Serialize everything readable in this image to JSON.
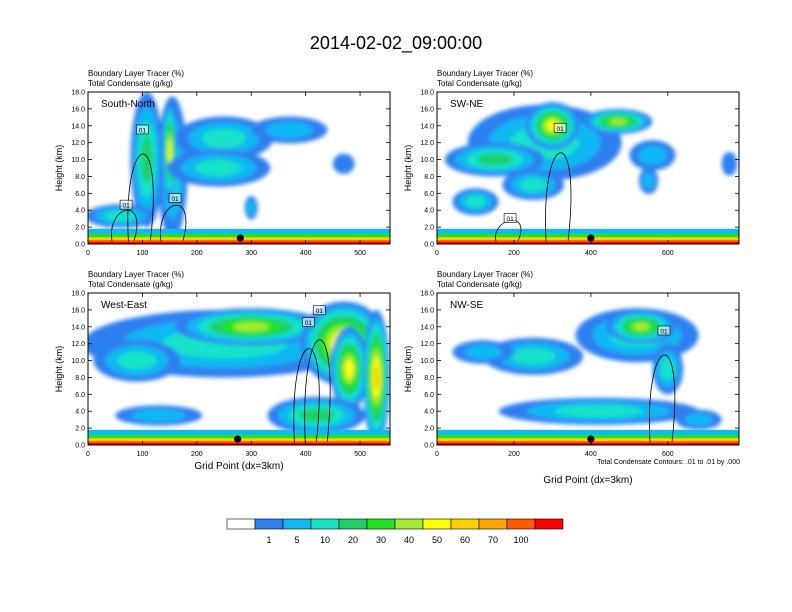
{
  "figure_title": "2014-02-02_09:00:00",
  "chart_data": [
    {
      "type": "heatmap",
      "panel": "top-left",
      "label": "South-North",
      "title_line1": "Boundary Layer Tracer    (%)",
      "title_line2": "Total Condensate    (g/kg)",
      "ylabel": "Height (km)",
      "xlabel": "",
      "xlim": [
        0,
        555
      ],
      "ylim": [
        0,
        18
      ],
      "xticks": [
        0,
        100,
        200,
        300,
        400,
        500
      ],
      "yticks": [
        "0.0",
        "2.0",
        "4.0",
        "6.0",
        "8.0",
        "10.0",
        "12.0",
        "14.0",
        "16.0",
        "18.0"
      ],
      "marker_x": 280,
      "contour_labels": [
        {
          "text": "01",
          "x": 160,
          "y": 5.4
        },
        {
          "text": "01",
          "x": 70,
          "y": 4.6
        },
        {
          "text": "01",
          "x": 100,
          "y": 13.5
        }
      ],
      "plumes": [
        {
          "x": 155,
          "y": 9.0,
          "rx": 28,
          "ry": 8.5,
          "level": 3
        },
        {
          "x": 150,
          "y": 11.0,
          "rx": 14,
          "ry": 6,
          "level": 7
        },
        {
          "x": 108,
          "y": 10.0,
          "rx": 30,
          "ry": 8,
          "level": 4
        },
        {
          "x": 60,
          "y": 3.3,
          "rx": 65,
          "ry": 1.4,
          "level": 3
        },
        {
          "x": 250,
          "y": 12.5,
          "rx": 90,
          "ry": 2.6,
          "level": 3
        },
        {
          "x": 240,
          "y": 9.0,
          "rx": 95,
          "ry": 2.2,
          "level": 3
        },
        {
          "x": 370,
          "y": 13.5,
          "rx": 70,
          "ry": 1.6,
          "level": 2
        },
        {
          "x": 300,
          "y": 4.3,
          "rx": 12,
          "ry": 1.4,
          "level": 2
        },
        {
          "x": 470,
          "y": 9.5,
          "rx": 20,
          "ry": 1.2,
          "level": 1
        }
      ]
    },
    {
      "type": "heatmap",
      "panel": "top-right",
      "label": "SW-NE",
      "title_line1": "Boundary Layer Tracer    (%)",
      "title_line2": "Total Condensate    (g/kg)",
      "ylabel": "Height (km)",
      "xlabel": "",
      "xlim": [
        0,
        785
      ],
      "ylim": [
        0,
        18
      ],
      "xticks": [
        0,
        200,
        400,
        600
      ],
      "yticks": [
        "0.0",
        "2.0",
        "4.0",
        "6.0",
        "8.0",
        "10.0",
        "12.0",
        "14.0",
        "16.0",
        "18.0"
      ],
      "marker_x": 400,
      "contour_labels": [
        {
          "text": "01",
          "x": 190,
          "y": 3.0
        },
        {
          "text": "01",
          "x": 320,
          "y": 13.7
        }
      ],
      "plumes": [
        {
          "x": 280,
          "y": 12.0,
          "rx": 200,
          "ry": 4.5,
          "level": 3
        },
        {
          "x": 300,
          "y": 14.0,
          "rx": 70,
          "ry": 2.8,
          "level": 7
        },
        {
          "x": 470,
          "y": 14.5,
          "rx": 90,
          "ry": 1.5,
          "level": 6
        },
        {
          "x": 150,
          "y": 10.0,
          "rx": 130,
          "ry": 2.0,
          "level": 4
        },
        {
          "x": 100,
          "y": 5.0,
          "rx": 60,
          "ry": 1.6,
          "level": 3
        },
        {
          "x": 250,
          "y": 7.0,
          "rx": 80,
          "ry": 1.8,
          "level": 3
        },
        {
          "x": 560,
          "y": 10.5,
          "rx": 60,
          "ry": 1.8,
          "level": 2
        },
        {
          "x": 550,
          "y": 7.5,
          "rx": 25,
          "ry": 1.6,
          "level": 2
        },
        {
          "x": 760,
          "y": 9.5,
          "rx": 20,
          "ry": 1.4,
          "level": 1
        }
      ]
    },
    {
      "type": "heatmap",
      "panel": "bottom-left",
      "label": "West-East",
      "title_line1": "Boundary Layer Tracer    (%)",
      "title_line2": "Total Condensate    (g/kg)",
      "ylabel": "Height (km)",
      "xlabel": "Grid Point (dx=3km)",
      "xlim": [
        0,
        555
      ],
      "ylim": [
        0,
        18
      ],
      "xticks": [
        0,
        100,
        200,
        300,
        400,
        500
      ],
      "yticks": [
        "0.0",
        "2.0",
        "4.0",
        "6.0",
        "8.0",
        "10.0",
        "12.0",
        "14.0",
        "16.0",
        "18.0"
      ],
      "marker_x": 275,
      "contour_labels": [
        {
          "text": "01",
          "x": 425,
          "y": 15.9
        },
        {
          "text": "01",
          "x": 405,
          "y": 14.5
        }
      ],
      "plumes": [
        {
          "x": 250,
          "y": 12.0,
          "rx": 260,
          "ry": 4.0,
          "level": 3
        },
        {
          "x": 300,
          "y": 14.0,
          "rx": 140,
          "ry": 2.2,
          "level": 6
        },
        {
          "x": 470,
          "y": 12.0,
          "rx": 80,
          "ry": 5.0,
          "level": 8
        },
        {
          "x": 480,
          "y": 9.0,
          "rx": 35,
          "ry": 5.0,
          "level": 7
        },
        {
          "x": 530,
          "y": 8.0,
          "rx": 25,
          "ry": 8.0,
          "level": 8
        },
        {
          "x": 420,
          "y": 3.5,
          "rx": 90,
          "ry": 2.2,
          "level": 4
        },
        {
          "x": 90,
          "y": 10.0,
          "rx": 80,
          "ry": 2.5,
          "level": 3
        },
        {
          "x": 130,
          "y": 3.5,
          "rx": 80,
          "ry": 1.2,
          "level": 2
        }
      ]
    },
    {
      "type": "heatmap",
      "panel": "bottom-right",
      "label": "NW-SE",
      "title_line1": "Boundary Layer Tracer    (%)",
      "title_line2": "Total Condensate    (g/kg)",
      "ylabel": "Height (km)",
      "xlabel": "Grid Point (dx=3km)",
      "xlim": [
        0,
        785
      ],
      "ylim": [
        0,
        18
      ],
      "xticks": [
        0,
        200,
        400,
        600
      ],
      "yticks": [
        "0.0",
        "2.0",
        "4.0",
        "6.0",
        "8.0",
        "10.0",
        "12.0",
        "14.0",
        "16.0",
        "18.0"
      ],
      "marker_x": 400,
      "contour_labels": [
        {
          "text": "01",
          "x": 590,
          "y": 13.5
        }
      ],
      "plumes": [
        {
          "x": 520,
          "y": 13.0,
          "rx": 160,
          "ry": 3.2,
          "level": 3
        },
        {
          "x": 530,
          "y": 14.0,
          "rx": 90,
          "ry": 2.0,
          "level": 6
        },
        {
          "x": 250,
          "y": 10.5,
          "rx": 130,
          "ry": 2.2,
          "level": 3
        },
        {
          "x": 120,
          "y": 11.0,
          "rx": 80,
          "ry": 1.4,
          "level": 2
        },
        {
          "x": 420,
          "y": 4.0,
          "rx": 260,
          "ry": 1.6,
          "level": 3
        },
        {
          "x": 680,
          "y": 3.0,
          "rx": 60,
          "ry": 1.2,
          "level": 2
        },
        {
          "x": 600,
          "y": 9.0,
          "rx": 40,
          "ry": 3.0,
          "level": 3
        }
      ]
    }
  ],
  "contour_note": "Total Condensate Contours: .01 to .01 by .000",
  "colorbar": {
    "colors": [
      "#ffffff",
      "#2f80f0",
      "#11b8f2",
      "#16e3c8",
      "#1ccf6a",
      "#22e422",
      "#a6ea33",
      "#ffff00",
      "#ffd000",
      "#ffa500",
      "#ff5a00",
      "#ff0000"
    ],
    "labels": [
      "1",
      "5",
      "10",
      "20",
      "30",
      "40",
      "50",
      "60",
      "70",
      "100"
    ]
  }
}
